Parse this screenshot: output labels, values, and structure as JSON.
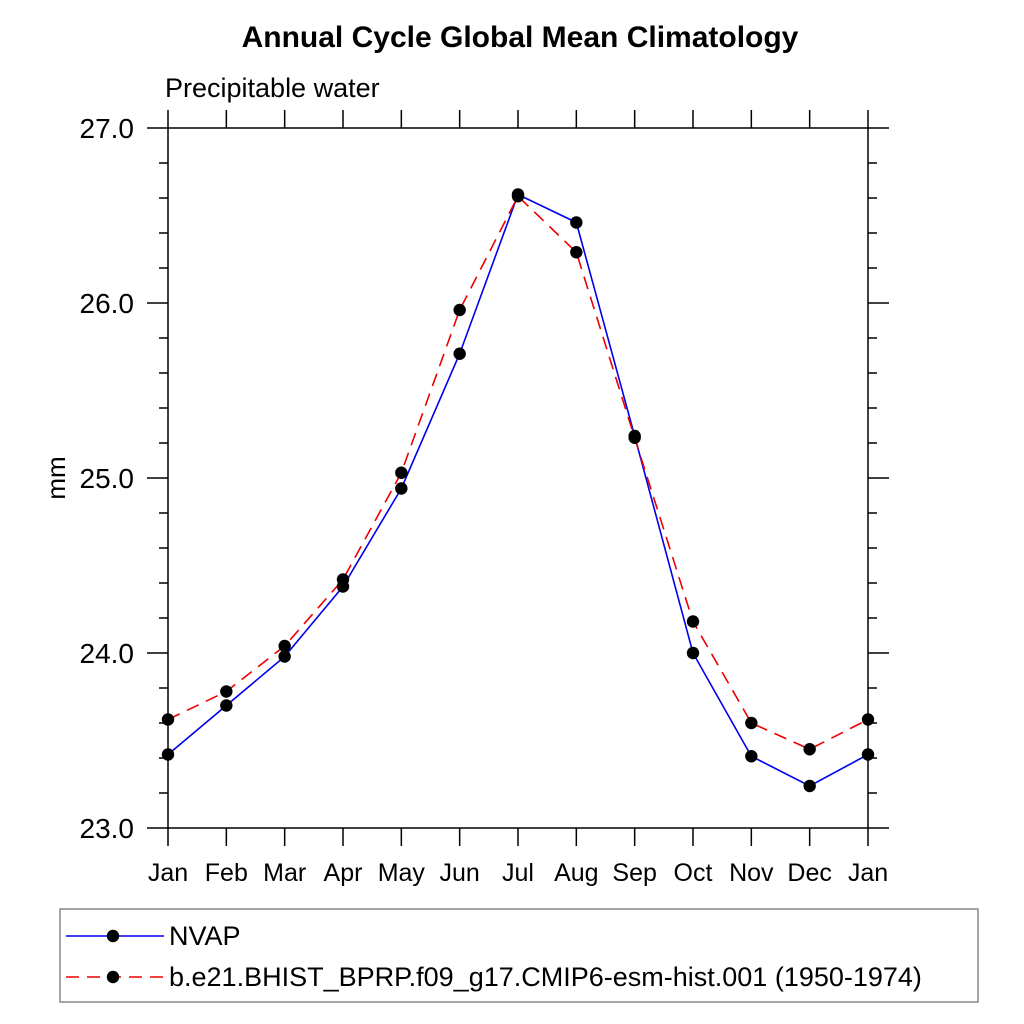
{
  "figure": {
    "title": "Annual Cycle Global Mean Climatology",
    "subtitle": "Precipitable water"
  },
  "chart_data": {
    "type": "line",
    "title": "Annual Cycle Global Mean Climatology",
    "subtitle": "Precipitable water",
    "xlabel": "",
    "ylabel": "mm",
    "ylim": [
      23.0,
      27.0
    ],
    "y_major_ticks": [
      23.0,
      24.0,
      25.0,
      26.0,
      27.0
    ],
    "y_tick_labels": [
      "23.0",
      "24.0",
      "25.0",
      "26.0",
      "27.0"
    ],
    "y_minor_step": 0.2,
    "grid": false,
    "legend_position": "bottom-left-box",
    "categories": [
      "Jan",
      "Feb",
      "Mar",
      "Apr",
      "May",
      "Jun",
      "Jul",
      "Aug",
      "Sep",
      "Oct",
      "Nov",
      "Dec",
      "Jan"
    ],
    "series": [
      {
        "name": "NVAP",
        "color": "#0000ee",
        "line_style": "solid",
        "marker": "filled-circle",
        "marker_color": "#000000",
        "values": [
          23.42,
          23.7,
          23.98,
          24.38,
          24.94,
          25.71,
          26.62,
          26.46,
          25.24,
          24.0,
          23.41,
          23.24,
          23.42
        ]
      },
      {
        "name": "b.e21.BHIST_BPRP.f09_g17.CMIP6-esm-hist.001 (1950-1974)",
        "color": "#ee0000",
        "line_style": "dashed",
        "marker": "filled-circle",
        "marker_color": "#000000",
        "values": [
          23.62,
          23.78,
          24.04,
          24.42,
          25.03,
          25.96,
          26.61,
          26.29,
          25.23,
          24.18,
          23.6,
          23.45,
          23.62
        ]
      }
    ],
    "axis_color": "#000000",
    "legend_border_color": "#888888"
  }
}
